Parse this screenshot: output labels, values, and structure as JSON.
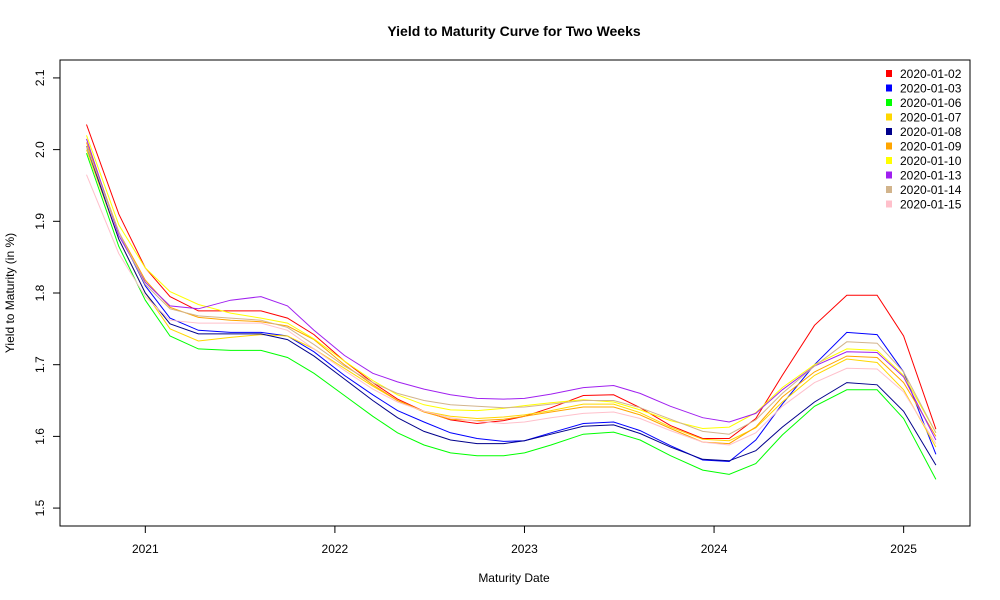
{
  "chart_data": {
    "type": "line",
    "title": "Yield to Maturity Curve for Two Weeks",
    "xlabel": "Maturity Date",
    "ylabel": "Yield to Maturity (in %)",
    "xlim": [
      2020.55,
      2025.35
    ],
    "ylim": [
      1.475,
      2.125
    ],
    "x_ticks": [
      {
        "value": 2021,
        "label": "2021"
      },
      {
        "value": 2022,
        "label": "2022"
      },
      {
        "value": 2023,
        "label": "2023"
      },
      {
        "value": 2024,
        "label": "2024"
      },
      {
        "value": 2025,
        "label": "2025"
      }
    ],
    "y_ticks": [
      {
        "value": 1.5,
        "label": "1.5"
      },
      {
        "value": 1.6,
        "label": "1.6"
      },
      {
        "value": 1.7,
        "label": "1.7"
      },
      {
        "value": 1.8,
        "label": "1.8"
      },
      {
        "value": 1.9,
        "label": "1.9"
      },
      {
        "value": 2.0,
        "label": "2.0"
      },
      {
        "value": 2.1,
        "label": "2.1"
      }
    ],
    "grid": false,
    "legend_position": "top-right",
    "x": [
      2020.69,
      2020.86,
      2021.0,
      2021.13,
      2021.28,
      2021.45,
      2021.61,
      2021.75,
      2021.89,
      2022.05,
      2022.2,
      2022.33,
      2022.47,
      2022.61,
      2022.75,
      2022.89,
      2023.0,
      2023.14,
      2023.31,
      2023.47,
      2023.61,
      2023.77,
      2023.94,
      2024.08,
      2024.22,
      2024.36,
      2024.53,
      2024.7,
      2024.86,
      2025.0,
      2025.17
    ],
    "series": [
      {
        "name": "2020-01-02",
        "color": "#ff0000",
        "values": [
          2.035,
          1.91,
          1.835,
          1.795,
          1.775,
          1.775,
          1.775,
          1.765,
          1.742,
          1.705,
          1.675,
          1.652,
          1.635,
          1.623,
          1.618,
          1.622,
          1.628,
          1.64,
          1.657,
          1.658,
          1.64,
          1.615,
          1.597,
          1.597,
          1.625,
          1.685,
          1.755,
          1.797,
          1.797,
          1.74,
          1.61
        ]
      },
      {
        "name": "2020-01-03",
        "color": "#0000ff",
        "values": [
          2.005,
          1.885,
          1.81,
          1.765,
          1.748,
          1.745,
          1.745,
          1.74,
          1.718,
          1.685,
          1.658,
          1.636,
          1.62,
          1.605,
          1.597,
          1.593,
          1.594,
          1.605,
          1.618,
          1.62,
          1.608,
          1.587,
          1.567,
          1.565,
          1.595,
          1.645,
          1.7,
          1.745,
          1.742,
          1.69,
          1.575
        ]
      },
      {
        "name": "2020-01-06",
        "color": "#00ff00",
        "values": [
          1.995,
          1.865,
          1.79,
          1.74,
          1.722,
          1.72,
          1.72,
          1.71,
          1.688,
          1.657,
          1.628,
          1.605,
          1.588,
          1.577,
          1.573,
          1.573,
          1.577,
          1.588,
          1.603,
          1.606,
          1.595,
          1.573,
          1.553,
          1.547,
          1.562,
          1.602,
          1.642,
          1.665,
          1.665,
          1.625,
          1.54
        ]
      },
      {
        "name": "2020-01-07",
        "color": "#ffd700",
        "values": [
          2.0,
          1.875,
          1.8,
          1.75,
          1.733,
          1.738,
          1.742,
          1.74,
          1.722,
          1.695,
          1.67,
          1.65,
          1.635,
          1.628,
          1.625,
          1.627,
          1.63,
          1.636,
          1.645,
          1.645,
          1.633,
          1.613,
          1.596,
          1.594,
          1.612,
          1.648,
          1.685,
          1.708,
          1.703,
          1.665,
          1.585
        ]
      },
      {
        "name": "2020-01-08",
        "color": "#00008b",
        "values": [
          2.005,
          1.875,
          1.8,
          1.757,
          1.743,
          1.743,
          1.743,
          1.735,
          1.712,
          1.68,
          1.65,
          1.626,
          1.607,
          1.595,
          1.59,
          1.59,
          1.594,
          1.603,
          1.614,
          1.616,
          1.604,
          1.585,
          1.568,
          1.566,
          1.58,
          1.613,
          1.648,
          1.675,
          1.672,
          1.635,
          1.56
        ]
      },
      {
        "name": "2020-01-09",
        "color": "#ffa500",
        "values": [
          2.01,
          1.885,
          1.818,
          1.78,
          1.766,
          1.762,
          1.76,
          1.754,
          1.735,
          1.7,
          1.672,
          1.65,
          1.634,
          1.624,
          1.622,
          1.624,
          1.628,
          1.634,
          1.641,
          1.641,
          1.63,
          1.611,
          1.592,
          1.59,
          1.613,
          1.655,
          1.69,
          1.712,
          1.71,
          1.675,
          1.6
        ]
      },
      {
        "name": "2020-01-10",
        "color": "#ffff00",
        "values": [
          2.02,
          1.895,
          1.835,
          1.802,
          1.784,
          1.772,
          1.765,
          1.758,
          1.736,
          1.705,
          1.678,
          1.658,
          1.644,
          1.637,
          1.636,
          1.639,
          1.643,
          1.647,
          1.651,
          1.648,
          1.637,
          1.622,
          1.611,
          1.613,
          1.633,
          1.668,
          1.7,
          1.722,
          1.72,
          1.685,
          1.605
        ]
      },
      {
        "name": "2020-01-13",
        "color": "#a020f0",
        "values": [
          2.015,
          1.88,
          1.815,
          1.782,
          1.778,
          1.79,
          1.795,
          1.782,
          1.748,
          1.713,
          1.688,
          1.676,
          1.666,
          1.658,
          1.653,
          1.652,
          1.653,
          1.659,
          1.668,
          1.671,
          1.66,
          1.642,
          1.626,
          1.62,
          1.632,
          1.665,
          1.698,
          1.718,
          1.717,
          1.683,
          1.595
        ]
      },
      {
        "name": "2020-01-14",
        "color": "#d2b48c",
        "values": [
          2.005,
          1.885,
          1.812,
          1.778,
          1.768,
          1.765,
          1.762,
          1.752,
          1.728,
          1.698,
          1.675,
          1.66,
          1.65,
          1.644,
          1.642,
          1.64,
          1.641,
          1.645,
          1.65,
          1.65,
          1.64,
          1.624,
          1.607,
          1.603,
          1.623,
          1.66,
          1.698,
          1.732,
          1.73,
          1.69,
          1.605
        ]
      },
      {
        "name": "2020-01-15",
        "color": "#ffc0cb",
        "values": [
          1.965,
          1.855,
          1.795,
          1.762,
          1.758,
          1.758,
          1.758,
          1.748,
          1.722,
          1.692,
          1.666,
          1.648,
          1.635,
          1.626,
          1.621,
          1.618,
          1.62,
          1.626,
          1.632,
          1.634,
          1.625,
          1.608,
          1.592,
          1.588,
          1.605,
          1.642,
          1.675,
          1.695,
          1.694,
          1.662,
          1.59
        ]
      }
    ]
  }
}
